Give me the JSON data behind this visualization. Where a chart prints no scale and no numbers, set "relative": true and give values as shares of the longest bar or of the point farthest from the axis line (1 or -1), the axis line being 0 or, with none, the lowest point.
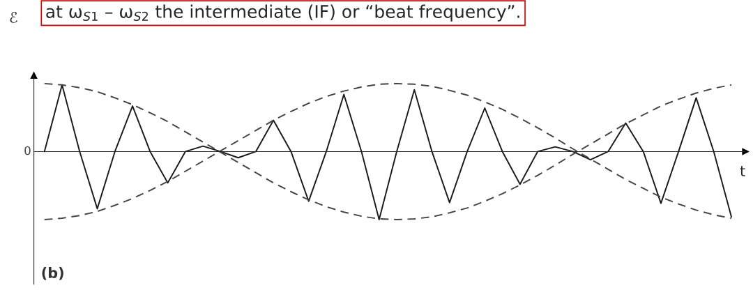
{
  "chart_data": {
    "type": "line",
    "relative": true,
    "title": "at ω$_{S1}$ – ω$_{S2}$ the intermediate (IF) or “beat frequency”.",
    "xlabel": "t",
    "ylabel": "ℰ",
    "annotations": [
      "0",
      "(b)"
    ],
    "categories": [
      null,
      null,
      null,
      null,
      null,
      null,
      null,
      null,
      null,
      null,
      null,
      null,
      null,
      null,
      null,
      null,
      null,
      null,
      null,
      null,
      null,
      null,
      null,
      null,
      null,
      null,
      null,
      null,
      null,
      null,
      null,
      null,
      null,
      null,
      null,
      null,
      null,
      null,
      null,
      null
    ],
    "series": [
      {
        "color": "#1a1a1a",
        "line_style": "solid",
        "values": [
          0,
          0.98,
          0,
          -0.84,
          0,
          0.67,
          0,
          -0.46,
          0,
          0.08,
          0,
          -0.09,
          0,
          0.46,
          0,
          -0.73,
          0,
          0.84,
          0,
          -1,
          0,
          0.91,
          0,
          -0.75,
          0,
          0.64,
          0,
          -0.48,
          0,
          0.07,
          0,
          -0.12,
          0,
          0.42,
          0,
          -0.76,
          0,
          0.79,
          0,
          -0.96
        ]
      },
      {
        "color": "#444444",
        "line_style": "dashed",
        "values": [
          1.0,
          0.98,
          0.94,
          0.88,
          0.79,
          0.69,
          0.57,
          0.44,
          0.29,
          0.14,
          -0.01,
          -0.16,
          -0.31,
          -0.46,
          -0.59,
          -0.71,
          -0.81,
          -0.89,
          -0.95,
          -0.99,
          -1.0,
          -0.99,
          -0.96,
          -0.9,
          -0.83,
          -0.73,
          -0.62,
          -0.49,
          -0.35,
          -0.2,
          -0.04,
          0.11,
          0.26,
          0.41,
          0.54,
          0.67,
          0.77,
          0.86,
          0.93,
          0.98
        ]
      },
      {
        "color": "#444444",
        "line_style": "dashed",
        "values": [
          -1.0,
          -0.98,
          -0.94,
          -0.88,
          -0.79,
          -0.69,
          -0.57,
          -0.44,
          -0.29,
          -0.14,
          0.01,
          0.16,
          0.31,
          0.46,
          0.59,
          0.71,
          0.81,
          0.89,
          0.95,
          0.99,
          1.0,
          0.99,
          0.96,
          0.9,
          0.83,
          0.73,
          0.62,
          0.49,
          0.35,
          0.2,
          0.04,
          -0.11,
          -0.26,
          -0.41,
          -0.54,
          -0.67,
          -0.77,
          -0.86,
          -0.93,
          -0.98
        ]
      }
    ]
  }
}
